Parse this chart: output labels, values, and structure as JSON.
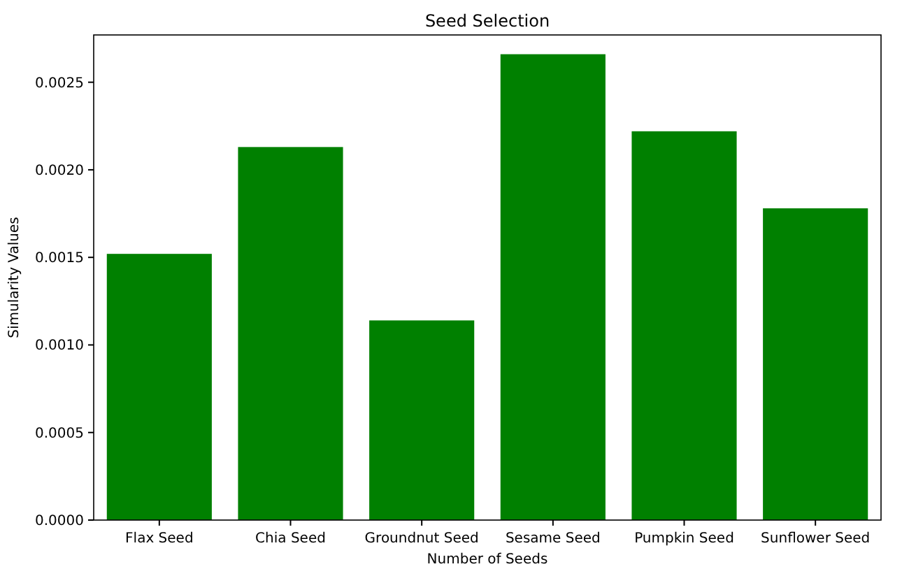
{
  "chart_data": {
    "type": "bar",
    "title": "Seed Selection",
    "xlabel": "Number of Seeds",
    "ylabel": "Simularity Values",
    "categories": [
      "Flax Seed",
      "Chia Seed",
      "Groundnut Seed",
      "Sesame Seed",
      "Pumpkin Seed",
      "Sunflower Seed"
    ],
    "values": [
      0.00152,
      0.00213,
      0.00114,
      0.00266,
      0.00222,
      0.00178
    ],
    "color": "#008000",
    "ylim": [
      0,
      0.00277
    ],
    "yticks": [
      {
        "value": 0,
        "label": "0.0000"
      },
      {
        "value": 0.0005,
        "label": "0.0005"
      },
      {
        "value": 0.001,
        "label": "0.0010"
      },
      {
        "value": 0.0015,
        "label": "0.0015"
      },
      {
        "value": 0.002,
        "label": "0.0020"
      },
      {
        "value": 0.0025,
        "label": "0.0025"
      }
    ]
  }
}
